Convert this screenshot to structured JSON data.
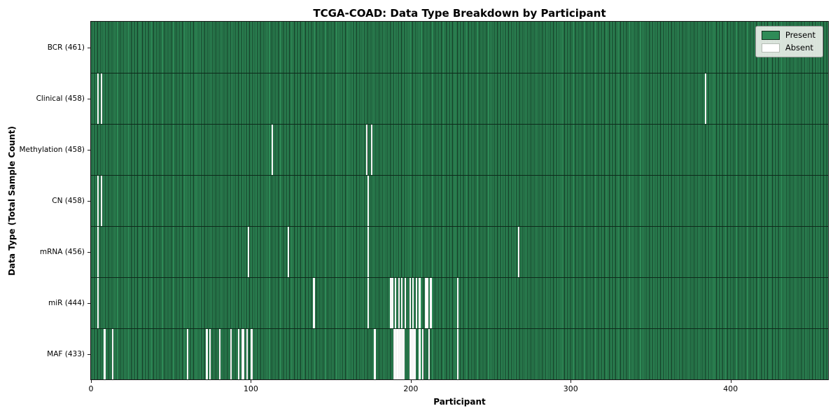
{
  "title": "TCGA-COAD: Data Type Breakdown by Participant",
  "xlabel": "Participant",
  "ylabel": "Data Type (Total Sample Count)",
  "legend": {
    "present_label": "Present",
    "absent_label": "Absent"
  },
  "colors": {
    "present": "#2e8b57",
    "present_edge": "#0f2e1d",
    "absent": "#ffffff",
    "row_divider": "#0c2a1a",
    "axis": "#1a1a1a",
    "legend_bg": "#e9eee8",
    "legend_border": "#9a9a9a"
  },
  "chart_data": {
    "type": "heatmap",
    "title": "TCGA-COAD: Data Type Breakdown by Participant",
    "xlabel": "Participant",
    "ylabel": "Data Type (Total Sample Count)",
    "n_participants": 461,
    "x_ticks": [
      0,
      100,
      200,
      300,
      400
    ],
    "x_range": [
      0,
      461
    ],
    "legend_entries": [
      "Present",
      "Absent"
    ],
    "legend_position": "upper right",
    "grid": false,
    "rows": [
      {
        "label": "BCR (461)",
        "data_type": "BCR",
        "present_count": 461,
        "absent_participants": []
      },
      {
        "label": "Clinical (458)",
        "data_type": "Clinical",
        "present_count": 458,
        "absent_participants": [
          4,
          6,
          384
        ]
      },
      {
        "label": "Methylation (458)",
        "data_type": "Methylation",
        "present_count": 458,
        "absent_participants": [
          113,
          172,
          175
        ]
      },
      {
        "label": "CN (458)",
        "data_type": "CN",
        "present_count": 458,
        "absent_participants": [
          4,
          6,
          173
        ]
      },
      {
        "label": "mRNA (456)",
        "data_type": "mRNA",
        "present_count": 456,
        "absent_participants": [
          4,
          98,
          123,
          173,
          267
        ]
      },
      {
        "label": "miR (444)",
        "data_type": "miR",
        "present_count": 444,
        "absent_participants": [
          4,
          139,
          173,
          187,
          188,
          190,
          192,
          194,
          196,
          199,
          201,
          203,
          205,
          209,
          210,
          212,
          229
        ]
      },
      {
        "label": "MAF (433)",
        "data_type": "MAF",
        "present_count": 433,
        "absent_participants": [
          8,
          13,
          60,
          72,
          74,
          80,
          87,
          92,
          94,
          95,
          97,
          100,
          177,
          189,
          190,
          191,
          192,
          193,
          194,
          195,
          199,
          200,
          201,
          202,
          205,
          207,
          211,
          229
        ]
      }
    ]
  }
}
